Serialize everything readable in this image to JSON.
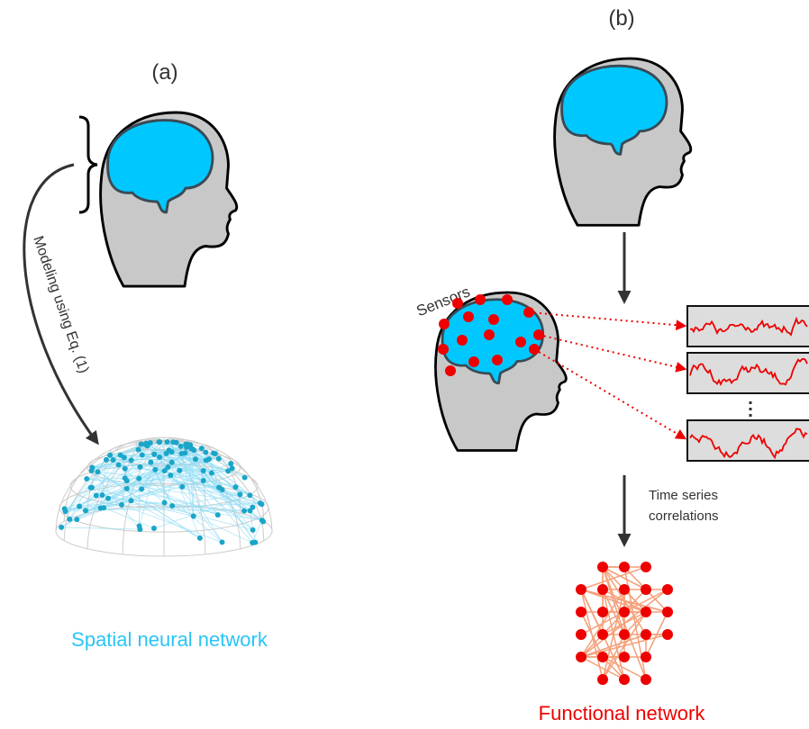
{
  "panel_labels": {
    "a": "(a)",
    "b": "(b)"
  },
  "modeling_label": "Modeling using Eq. (1)",
  "spatial_title": "Spatial neural network",
  "sensors_label": "Sensors",
  "correlation_label": [
    "Time series",
    "correlations"
  ],
  "functional_title": "Functional network"
}
